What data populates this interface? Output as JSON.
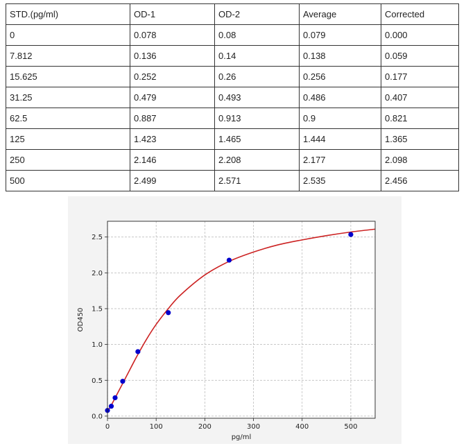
{
  "table": {
    "headers": [
      "STD.(pg/ml)",
      "OD-1",
      "OD-2",
      "Average",
      "Corrected"
    ],
    "rows": [
      [
        "0",
        "0.078",
        "0.08",
        "0.079",
        "0.000"
      ],
      [
        "7.812",
        "0.136",
        "0.14",
        "0.138",
        "0.059"
      ],
      [
        "15.625",
        "0.252",
        "0.26",
        "0.256",
        "0.177"
      ],
      [
        "31.25",
        "0.479",
        "0.493",
        "0.486",
        "0.407"
      ],
      [
        "62.5",
        "0.887",
        "0.913",
        "0.9",
        "0.821"
      ],
      [
        "125",
        "1.423",
        "1.465",
        "1.444",
        "1.365"
      ],
      [
        "250",
        "2.146",
        "2.208",
        "2.177",
        "2.098"
      ],
      [
        "500",
        "2.499",
        "2.571",
        "2.535",
        "2.456"
      ]
    ]
  },
  "chart_data": {
    "type": "scatter",
    "title": "",
    "xlabel": "pg/ml",
    "ylabel": "OD450",
    "xlim": [
      0,
      550
    ],
    "ylim": [
      -0.03,
      2.72
    ],
    "xticks": [
      0,
      100,
      200,
      300,
      400,
      500
    ],
    "yticks": [
      0.0,
      0.5,
      1.0,
      1.5,
      2.0,
      2.5
    ],
    "ytick_labels": [
      "0.0",
      "0.5",
      "1.0",
      "1.5",
      "2.0",
      "2.5"
    ],
    "grid": true,
    "series": [
      {
        "kind": "points",
        "color": "#0000cc",
        "x": [
          0,
          7.812,
          15.625,
          31.25,
          62.5,
          125,
          250,
          500
        ],
        "y": [
          0.079,
          0.138,
          0.256,
          0.486,
          0.9,
          1.444,
          2.177,
          2.535
        ]
      },
      {
        "kind": "fitted-curve",
        "color": "#cc2222",
        "x": [
          0,
          10,
          20,
          40,
          60,
          80,
          100,
          125,
          150,
          200,
          250,
          300,
          350,
          400,
          450,
          500,
          550
        ],
        "y": [
          0.06,
          0.18,
          0.31,
          0.57,
          0.83,
          1.07,
          1.28,
          1.5,
          1.69,
          1.97,
          2.16,
          2.29,
          2.39,
          2.46,
          2.52,
          2.57,
          2.61
        ]
      }
    ]
  }
}
